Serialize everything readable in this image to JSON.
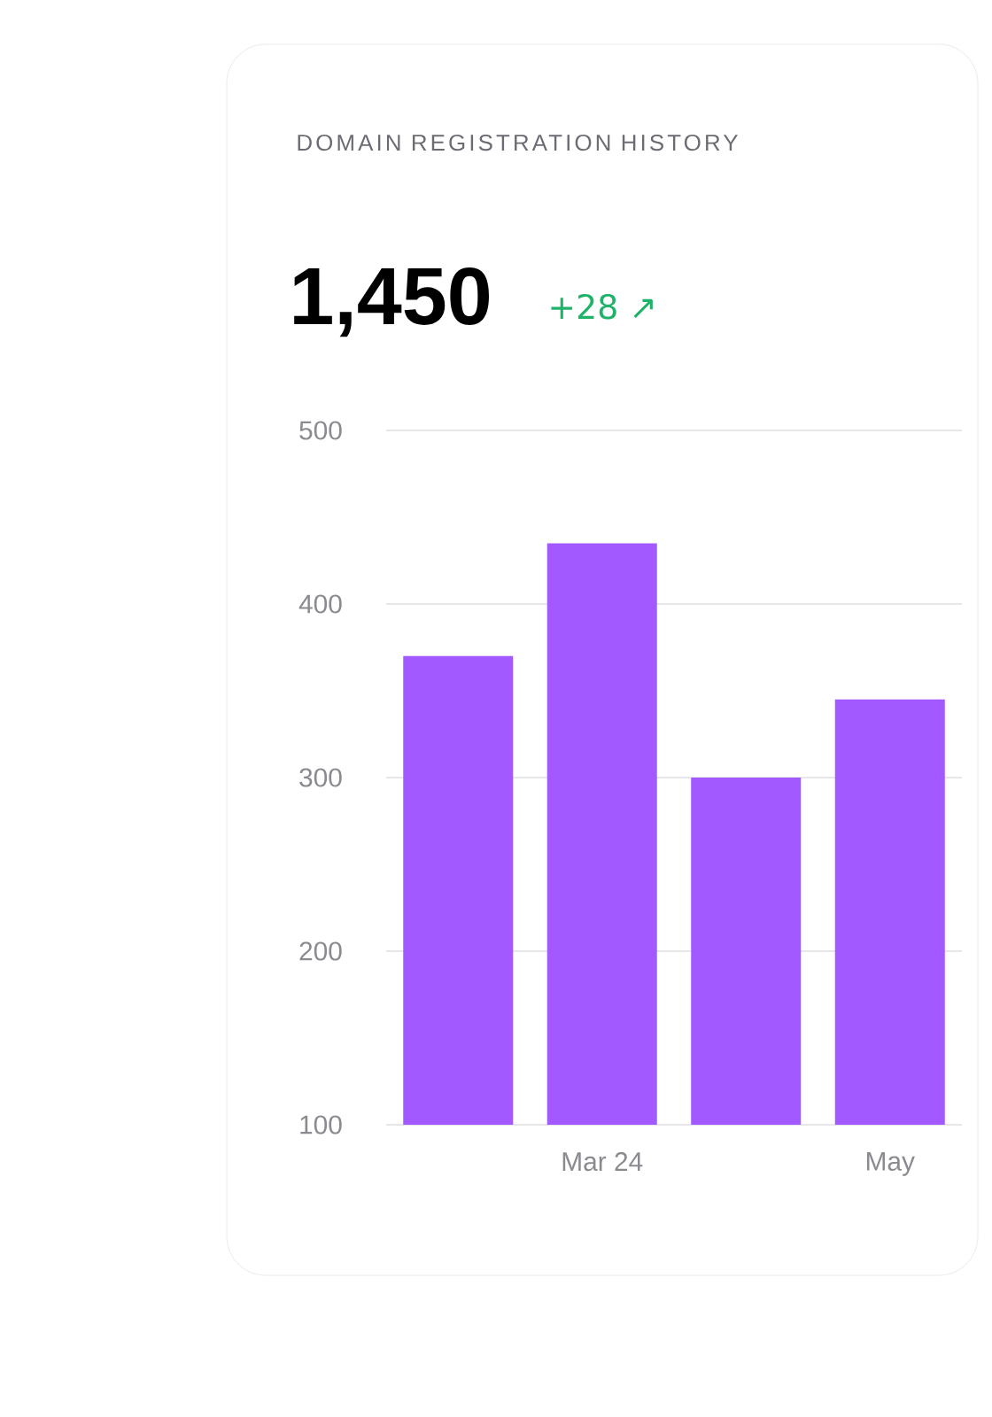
{
  "chart_data": {
    "type": "bar",
    "title": "DOMAIN REGISTRATION HISTORY",
    "annotations": [
      "1,450",
      "+28 ↗"
    ],
    "categories": [
      null,
      "Mar 24",
      null,
      "May"
    ],
    "values": [
      370,
      435,
      300,
      345
    ],
    "color": "#a259ff",
    "ylim": [
      100,
      500
    ],
    "yticks": [
      100,
      200,
      300,
      400,
      500
    ],
    "grid": "y"
  }
}
